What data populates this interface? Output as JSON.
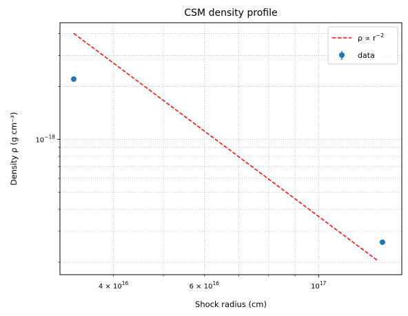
{
  "chart_data": {
    "type": "scatter",
    "title": "CSM density profile",
    "xlabel": "Shock radius (cm)",
    "ylabel": "Density ρ (g cm⁻³)",
    "xscale": "log",
    "yscale": "log",
    "xlim": [
      3.15e+16,
      1.45e+17
    ],
    "ylim": [
      1.7e-19,
      4.6e-18
    ],
    "grid": true,
    "legend_position": "top-right",
    "x_tick_labels": [
      {
        "value": 4e+16,
        "mantissa": "4",
        "times": "×",
        "base": "10",
        "exp": "16"
      },
      {
        "value": 6e+16,
        "mantissa": "6",
        "times": "×",
        "base": "10",
        "exp": "16"
      },
      {
        "value": 1e+17,
        "mantissa": "",
        "times": "",
        "base": "10",
        "exp": "17"
      }
    ],
    "y_tick_labels": [
      {
        "value": 1e-18,
        "base": "10",
        "exp": "−18"
      }
    ],
    "series": [
      {
        "name": "ρ ∝ r",
        "name_exp": "−2",
        "kind": "line",
        "style": "dashed",
        "color": "#ff0000",
        "x": [
          3.35e+16,
          1.3e+17
        ],
        "y": [
          4e-18,
          2.05e-19
        ]
      },
      {
        "name": "data",
        "kind": "errorbar",
        "color": "#1f77b4",
        "x": [
          3.35e+16,
          1.33e+17
        ],
        "y": [
          2.2e-18,
          2.6e-19
        ],
        "yerr": [
          8e-20,
          5e-21
        ]
      }
    ]
  }
}
